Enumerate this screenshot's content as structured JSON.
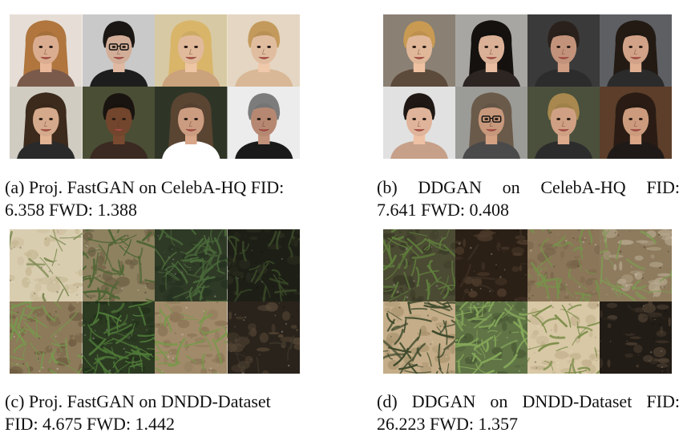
{
  "figure": {
    "panels": [
      {
        "id": "a",
        "caption_line1": "(a) Proj. FastGAN on CelebA-HQ FID:",
        "caption_line2": "6.358 FWD: 1.388",
        "content": "faces",
        "tiles": [
          {
            "bg": "#e6ded6",
            "skin": "#e9b89a",
            "hair": "#b0763e",
            "shirt": "#7a5a4a",
            "glasses": false
          },
          {
            "bg": "#c9c9c9",
            "skin": "#e0b9a2",
            "hair": "#1b1714",
            "shirt": "#1d1d1d",
            "glasses": true
          },
          {
            "bg": "#d7c9a3",
            "skin": "#efc6a4",
            "hair": "#d9b56a",
            "shirt": "#caa27b",
            "glasses": false
          },
          {
            "bg": "#e4d6c2",
            "skin": "#f0c9ab",
            "hair": "#c49a5c",
            "shirt": "#d8b896",
            "glasses": false
          },
          {
            "bg": "#d0ccc2",
            "skin": "#e3b494",
            "hair": "#3c2a1c",
            "shirt": "#2a2a2a",
            "glasses": false
          },
          {
            "bg": "#4a4e35",
            "skin": "#7a4a30",
            "hair": "#1a1410",
            "shirt": "#3a2a22",
            "glasses": false
          },
          {
            "bg": "#2e3526",
            "skin": "#d8a688",
            "hair": "#5a4432",
            "shirt": "#ffffff",
            "glasses": false
          },
          {
            "bg": "#ececec",
            "skin": "#c2917a",
            "hair": "#7c7c7c",
            "shirt": "#1a1a1a",
            "glasses": false
          }
        ]
      },
      {
        "id": "b",
        "caption_line1": "(b) DDGAN on CelebA-HQ FID:",
        "caption_line2": "7.641 FWD: 0.408",
        "content": "faces",
        "tiles": [
          {
            "bg": "#8a8074",
            "skin": "#efc3a2",
            "hair": "#c99a52",
            "shirt": "#5c4a3a",
            "glasses": false
          },
          {
            "bg": "#a8a6a2",
            "skin": "#e8bca0",
            "hair": "#14110f",
            "shirt": "#2d2522",
            "glasses": false
          },
          {
            "bg": "#3a3a3a",
            "skin": "#cf9d82",
            "hair": "#2a211c",
            "shirt": "#2c2c2c",
            "glasses": false
          },
          {
            "bg": "#5e5f63",
            "skin": "#dfad90",
            "hair": "#231a14",
            "shirt": "#2b2b2b",
            "glasses": false
          },
          {
            "bg": "#e1e1e1",
            "skin": "#eec0a4",
            "hair": "#1f1814",
            "shirt": "#c7a08a",
            "glasses": false
          },
          {
            "bg": "#9b9b97",
            "skin": "#d4a283",
            "hair": "#6a5a4a",
            "shirt": "#4a4a4a",
            "glasses": true
          },
          {
            "bg": "#4a503c",
            "skin": "#dcaa8c",
            "hair": "#a8884e",
            "shirt": "#2c2c2c",
            "glasses": false
          },
          {
            "bg": "#5c3e2a",
            "skin": "#d9a585",
            "hair": "#2a1c14",
            "shirt": "#1f1a18",
            "glasses": false
          }
        ]
      },
      {
        "id": "c",
        "caption_line1": "(c) Proj. FastGAN on DNDD-Dataset",
        "caption_line2": "FID: 4.675 FWD: 1.442",
        "content": "soil",
        "tiles": [
          {
            "ground": "#d9cdb0",
            "clod": "#c7b995",
            "grass": "#7d8a52",
            "density": 2
          },
          {
            "ground": "#8e8160",
            "clod": "#6b5e43",
            "grass": "#4c6532",
            "density": 6
          },
          {
            "ground": "#2f3a26",
            "clod": "#243020",
            "grass": "#4a6a3a",
            "density": 8
          },
          {
            "ground": "#1d1f16",
            "clod": "#2a2c1e",
            "grass": "#3a4a28",
            "density": 4
          },
          {
            "ground": "#8d7a5a",
            "clod": "#6f5d42",
            "grass": "#77984e",
            "density": 6
          },
          {
            "ground": "#2c3a22",
            "clod": "#22301a",
            "grass": "#4f7a38",
            "density": 8
          },
          {
            "ground": "#a08a6a",
            "clod": "#8a7556",
            "grass": "#79984a",
            "density": 4
          },
          {
            "ground": "#2a231b",
            "clod": "#5a4a38",
            "grass": "#3a3428",
            "density": 1
          }
        ]
      },
      {
        "id": "d",
        "caption_line1": "(d) DDGAN on DNDD-Dataset FID:",
        "caption_line2": "26.223 FWD: 1.357",
        "content": "soil",
        "tiles": [
          {
            "ground": "#4b4a33",
            "clod": "#3a3a28",
            "grass": "#5f7e3c",
            "density": 7
          },
          {
            "ground": "#2b2016",
            "clod": "#4e3c2c",
            "grass": "#3a2e22",
            "density": 1
          },
          {
            "ground": "#8b7659",
            "clod": "#776449",
            "grass": "#76934a",
            "density": 5
          },
          {
            "ground": "#8e7b5e",
            "clod": "#b6a88e",
            "grass": "#7e9a52",
            "density": 3
          },
          {
            "ground": "#c4ad88",
            "clod": "#a8936e",
            "grass": "#3e4a2c",
            "density": 7
          },
          {
            "ground": "#607446",
            "clod": "#4a5a36",
            "grass": "#86a85a",
            "density": 8
          },
          {
            "ground": "#d8c8a6",
            "clod": "#c2b08c",
            "grass": "#7d8e4a",
            "density": 4
          },
          {
            "ground": "#221c16",
            "clod": "#4e4032",
            "grass": "#2c261e",
            "density": 1
          }
        ]
      }
    ]
  }
}
